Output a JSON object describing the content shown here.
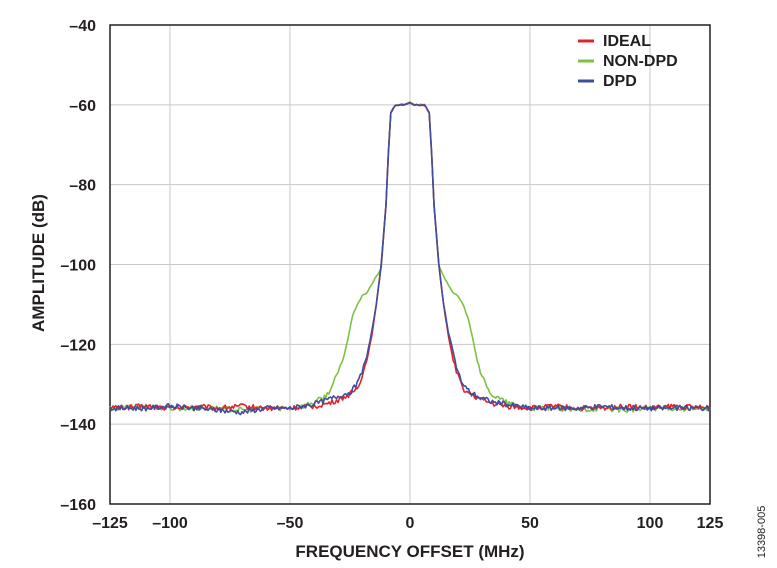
{
  "chart_data": {
    "type": "line",
    "xlabel": "FREQUENCY OFFSET (MHz)",
    "ylabel": "AMPLITUDE (dB)",
    "xlim": [
      -125,
      125
    ],
    "ylim": [
      -160,
      -40
    ],
    "xticks": [
      -125,
      -100,
      -50,
      0,
      50,
      100,
      125
    ],
    "yticks": [
      -40,
      -60,
      -80,
      -100,
      -120,
      -140,
      -160
    ],
    "xtick_labels": [
      "–125",
      "–100",
      "–50",
      "0",
      "50",
      "100",
      "125"
    ],
    "ytick_labels": [
      "–40",
      "–60",
      "–80",
      "–100",
      "–120",
      "–140",
      "–160"
    ],
    "grid": true,
    "legend_position": "top-right",
    "figure_id": "13398-005",
    "series": [
      {
        "name": "IDEAL",
        "color": "#e8202a",
        "x": [
          -125,
          -110,
          -100,
          -90,
          -80,
          -70,
          -60,
          -50,
          -40,
          -35,
          -30,
          -25,
          -22,
          -20,
          -18,
          -16,
          -14,
          -12,
          -10,
          -9,
          -8,
          -6,
          -4,
          -2,
          0,
          2,
          4,
          6,
          8,
          9,
          10,
          12,
          14,
          16,
          18,
          20,
          22,
          25,
          30,
          35,
          40,
          50,
          60,
          70,
          80,
          90,
          100,
          110,
          125
        ],
        "y": [
          -136,
          -135.5,
          -136,
          -135.5,
          -136,
          -135.5,
          -136,
          -136,
          -135.5,
          -135,
          -134,
          -132.5,
          -131,
          -128,
          -124,
          -118,
          -110,
          -100,
          -85,
          -72,
          -62,
          -60,
          -60,
          -60,
          -59.5,
          -60,
          -60,
          -60,
          -62,
          -72,
          -85,
          -100,
          -110,
          -118,
          -124,
          -128,
          -131,
          -132.5,
          -134,
          -135,
          -135.5,
          -136,
          -135.5,
          -136,
          -136,
          -135.5,
          -136,
          -135.5,
          -136
        ]
      },
      {
        "name": "NON-DPD",
        "color": "#7dc242",
        "x": [
          -125,
          -110,
          -100,
          -90,
          -80,
          -70,
          -60,
          -50,
          -45,
          -40,
          -35,
          -32,
          -30,
          -28,
          -26,
          -24,
          -22,
          -20,
          -18,
          -16,
          -14,
          -12,
          -10,
          -9,
          -8,
          -6,
          -4,
          -2,
          0,
          2,
          4,
          6,
          8,
          9,
          10,
          12,
          14,
          16,
          18,
          20,
          22,
          24,
          26,
          28,
          30,
          32,
          35,
          40,
          45,
          50,
          60,
          70,
          80,
          90,
          100,
          110,
          125
        ],
        "y": [
          -136,
          -135.5,
          -136,
          -136,
          -136,
          -136.5,
          -136,
          -136,
          -135.5,
          -134.5,
          -133,
          -130,
          -127,
          -124,
          -119,
          -113,
          -110,
          -108,
          -107,
          -105,
          -103,
          -101,
          -85,
          -72,
          -62,
          -60,
          -60,
          -60,
          -59.5,
          -60,
          -60,
          -60,
          -62,
          -72,
          -85,
          -100,
          -103,
          -105,
          -107,
          -108,
          -110,
          -113,
          -118,
          -124,
          -128,
          -131,
          -133,
          -134.5,
          -135.5,
          -136,
          -136,
          -136.5,
          -136,
          -136.5,
          -136,
          -136,
          -136.5
        ]
      },
      {
        "name": "DPD",
        "color": "#3f4da0",
        "x": [
          -125,
          -110,
          -100,
          -90,
          -80,
          -70,
          -60,
          -50,
          -40,
          -35,
          -30,
          -25,
          -22,
          -20,
          -18,
          -16,
          -14,
          -12,
          -10,
          -9,
          -8,
          -6,
          -4,
          -2,
          0,
          2,
          4,
          6,
          8,
          9,
          10,
          12,
          14,
          16,
          18,
          20,
          22,
          25,
          30,
          35,
          40,
          50,
          60,
          70,
          80,
          90,
          100,
          110,
          125
        ],
        "y": [
          -136,
          -136,
          -135.5,
          -136,
          -136.5,
          -137,
          -136,
          -136,
          -135,
          -134,
          -133,
          -132,
          -130,
          -127,
          -123,
          -117,
          -110,
          -100,
          -85,
          -72,
          -62,
          -60,
          -60,
          -60,
          -59.5,
          -60,
          -60,
          -60,
          -62,
          -72,
          -85,
          -100,
          -110,
          -117,
          -122,
          -127,
          -130,
          -132,
          -133.5,
          -134.5,
          -135,
          -136,
          -136,
          -136,
          -135.5,
          -136,
          -136,
          -136,
          -136
        ]
      }
    ]
  }
}
